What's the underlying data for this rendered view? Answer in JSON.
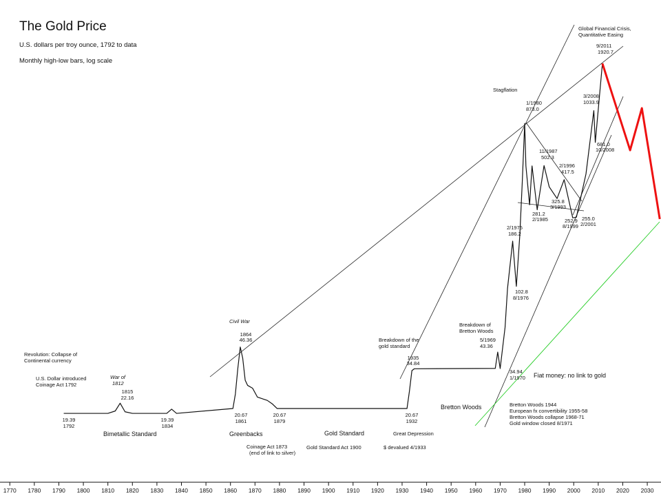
{
  "chart_data": {
    "type": "line",
    "title": "The Gold Price",
    "subtitle": "U.S. dollars per troy ounce, 1792 to data",
    "note": "Monthly high-low bars, log scale",
    "log_scale": true,
    "xlim": [
      1766,
      2035.6
    ],
    "ylim": [
      7.85,
      4420
    ],
    "xticks": [
      1770,
      1780,
      1790,
      1800,
      1810,
      1820,
      1830,
      1840,
      1850,
      1860,
      1870,
      1880,
      1890,
      1900,
      1910,
      1920,
      1930,
      1940,
      1950,
      1960,
      1970,
      1980,
      1990,
      2000,
      2010,
      2020,
      2030
    ],
    "series": [
      {
        "color": "#111111",
        "x": [
          1792,
          1810,
          1813,
          1815,
          1817,
          1820,
          1834,
          1836,
          1838,
          1861,
          1862,
          1863,
          1864,
          1865,
          1866,
          1867,
          1869,
          1871,
          1875,
          1877,
          1879,
          1932,
          1933,
          1934,
          1935,
          1968,
          1969,
          1970,
          1972,
          1973,
          1975.1,
          1976.6,
          1978,
          1979,
          1980,
          1980.5,
          1982,
          1983,
          1985.1,
          1987.9,
          1990,
          1993.2,
          1996.1,
          1999.6,
          2001.1,
          2005,
          2008.2,
          2008.8,
          2011.7
        ],
        "values": [
          19.39,
          19.39,
          20,
          22.16,
          19.8,
          19.39,
          19.39,
          20.5,
          19.39,
          20.67,
          25,
          35,
          46.36,
          40,
          30,
          28,
          27,
          24,
          23,
          22,
          20.67,
          20.67,
          26,
          34,
          34.84,
          35,
          43.36,
          34.94,
          60,
          100,
          186.2,
          102.8,
          200,
          400,
          873.0,
          500,
          300,
          500,
          281.2,
          502.3,
          380,
          325.8,
          417.5,
          252.9,
          255.0,
          450,
          1033.9,
          681.0,
          1920.7
        ]
      },
      {
        "color": "#ee1111",
        "x": [
          2011.7,
          2023.0,
          2027.8,
          2035.1
        ],
        "values": [
          1920.7,
          614.6,
          1067,
          248.7
        ]
      }
    ],
    "annotations": [
      "Revolution: Collapse of",
      "Continental currency",
      "U.S. Dollar introduced",
      "Coinage Act 1792",
      "War of",
      "1812",
      "1815",
      "22.16",
      "19.39",
      "1792",
      "19.39",
      "1834",
      "Bimetallic Standard",
      "Civil War",
      "1864",
      "46.36",
      "20.67",
      "1861",
      "20.67",
      "1879",
      "Greenbacks",
      "Coinage Act 1873",
      "(end of link to silver)",
      "Gold Standard",
      "Gold Standard Act 1900",
      "Breakdown of the",
      "gold standard",
      "1935",
      "34.84",
      "20.67",
      "1932",
      "Great Depression",
      "$ devalued 4/1933",
      "Breakdown of",
      "Bretton Woods",
      "5/1969",
      "43.36",
      "34.94",
      "1/1970",
      "Fiat money: no link to gold",
      "Bretton Woods",
      "Bretton Woods 1944",
      "European fx convertibility 1955-58",
      "Bretton Woods collapse 1968-71",
      "Gold window closed 8/1971",
      "2/1975",
      "186.2",
      "102.8",
      "8/1976",
      "Stagflation",
      "1/1980",
      "873.0",
      "11/1987",
      "502.3",
      "2/1996",
      "417.5",
      "281.2",
      "2/1985",
      "325.8",
      "3/1993",
      "252.9",
      "8/1999",
      "255.0",
      "2/2001",
      "3/2008",
      "1033.9",
      "681.0",
      "10/2008",
      "9/2011",
      "1920.7",
      "Global Financial Crisis,",
      "Quantitative Easing"
    ]
  }
}
